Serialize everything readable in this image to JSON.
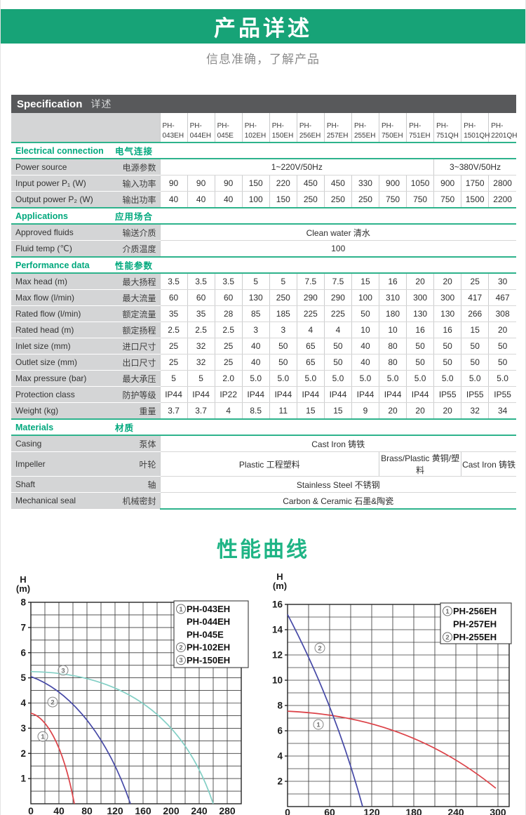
{
  "header": {
    "title": "产品详述",
    "subtitle": "信息准确，了解产品"
  },
  "spec": {
    "title_en": "Specification",
    "title_zh": "详述",
    "models": [
      "PH-043EH",
      "PH-044EH",
      "PH-045E",
      "PH-102EH",
      "PH-150EH",
      "PH-256EH",
      "PH-257EH",
      "PH-255EH",
      "PH-750EH",
      "PH-751EH",
      "PH-751QH",
      "PH-1501QH",
      "PH-2201QH"
    ],
    "rows": [
      {
        "type": "section",
        "en": "Electrical connection",
        "zh": "电气连接"
      },
      {
        "type": "row",
        "en": "Power source",
        "zh": "电源参数",
        "cells": [
          {
            "span": 10,
            "t": "1~220V/50Hz"
          },
          {
            "span": 3,
            "t": "3~380V/50Hz"
          }
        ]
      },
      {
        "type": "row",
        "en": "Input power P₁ (W)",
        "zh": "输入功率",
        "cells": [
          "90",
          "90",
          "90",
          "150",
          "220",
          "450",
          "450",
          "330",
          "900",
          "1050",
          "900",
          "1750",
          "2800"
        ]
      },
      {
        "type": "row",
        "en": "Output power P₂ (W)",
        "zh": "输出功率",
        "cells": [
          "40",
          "40",
          "40",
          "100",
          "150",
          "250",
          "250",
          "250",
          "750",
          "750",
          "750",
          "1500",
          "2200"
        ]
      },
      {
        "type": "section",
        "en": "Applications",
        "zh": "应用场合"
      },
      {
        "type": "row",
        "en": "Approved fluids",
        "zh": "输送介质",
        "cells": [
          {
            "span": 13,
            "t": "Clean water 清水"
          }
        ]
      },
      {
        "type": "row",
        "en": "Fluid temp (℃)",
        "zh": "介质温度",
        "cells": [
          {
            "span": 13,
            "t": "100"
          }
        ]
      },
      {
        "type": "section",
        "en": "Performance data",
        "zh": "性能参数"
      },
      {
        "type": "row",
        "en": "Max head (m)",
        "zh": "最大扬程",
        "cells": [
          "3.5",
          "3.5",
          "3.5",
          "5",
          "5",
          "7.5",
          "7.5",
          "15",
          "16",
          "20",
          "20",
          "25",
          "30"
        ]
      },
      {
        "type": "row",
        "en": "Max flow (l/min)",
        "zh": "最大流量",
        "cells": [
          "60",
          "60",
          "60",
          "130",
          "250",
          "290",
          "290",
          "100",
          "310",
          "300",
          "300",
          "417",
          "467"
        ]
      },
      {
        "type": "row",
        "en": "Rated flow (l/min)",
        "zh": "额定流量",
        "cells": [
          "35",
          "35",
          "28",
          "85",
          "185",
          "225",
          "225",
          "50",
          "180",
          "130",
          "130",
          "266",
          "308"
        ]
      },
      {
        "type": "row",
        "en": "Rated head (m)",
        "zh": "额定扬程",
        "cells": [
          "2.5",
          "2.5",
          "2.5",
          "3",
          "3",
          "4",
          "4",
          "10",
          "10",
          "16",
          "16",
          "15",
          "20"
        ]
      },
      {
        "type": "row",
        "en": "Inlet size (mm)",
        "zh": "进口尺寸",
        "cells": [
          "25",
          "32",
          "25",
          "40",
          "50",
          "65",
          "50",
          "40",
          "80",
          "50",
          "50",
          "50",
          "50"
        ]
      },
      {
        "type": "row",
        "en": "Outlet size (mm)",
        "zh": "出口尺寸",
        "cells": [
          "25",
          "32",
          "25",
          "40",
          "50",
          "65",
          "50",
          "40",
          "80",
          "50",
          "50",
          "50",
          "50"
        ]
      },
      {
        "type": "row",
        "en": "Max pressure (bar)",
        "zh": "最大承压",
        "cells": [
          "5",
          "5",
          "2.0",
          "5.0",
          "5.0",
          "5.0",
          "5.0",
          "5.0",
          "5.0",
          "5.0",
          "5.0",
          "5.0",
          "5.0"
        ]
      },
      {
        "type": "row",
        "en": "Protection class",
        "zh": "防护等级",
        "cells": [
          "IP44",
          "IP44",
          "IP22",
          "IP44",
          "IP44",
          "IP44",
          "IP44",
          "IP44",
          "IP44",
          "IP44",
          "IP55",
          "IP55",
          "IP55"
        ]
      },
      {
        "type": "row",
        "en": "Weight  (kg)",
        "zh": "重量",
        "cells": [
          "3.7",
          "3.7",
          "4",
          "8.5",
          "11",
          "15",
          "15",
          "9",
          "20",
          "20",
          "20",
          "32",
          "34"
        ]
      },
      {
        "type": "section",
        "en": "Materials",
        "zh": "材质"
      },
      {
        "type": "row",
        "en": "Casing",
        "zh": "泵体",
        "cells": [
          {
            "span": 13,
            "t": "Cast Iron 铸铁"
          }
        ]
      },
      {
        "type": "row",
        "en": "Impeller",
        "zh": "叶轮",
        "cells": [
          {
            "span": 8,
            "t": "Plastic 工程塑料"
          },
          {
            "span": 3,
            "t": "Brass/Plastic 黄铜/塑料"
          },
          {
            "span": 2,
            "t": "Cast Iron 铸铁"
          }
        ]
      },
      {
        "type": "row",
        "en": "Shaft",
        "zh": "轴",
        "cells": [
          {
            "span": 13,
            "t": "Stainless Steel 不锈钢"
          }
        ]
      },
      {
        "type": "row",
        "en": "Mechanical seal",
        "zh": "机械密封",
        "cells": [
          {
            "span": 13,
            "t": "Carbon & Ceramic 石墨&陶瓷"
          }
        ]
      }
    ]
  },
  "curves": {
    "heading": "性能曲线"
  },
  "colors": {
    "banner_green": "#17a377",
    "section_green": "#00a87d",
    "rule_green": "#2eb38c",
    "bar_gray": "#58595b",
    "label_gray": "#d4d5d6",
    "curve_red": "#dc4248",
    "curve_blue": "#4548a6",
    "curve_teal": "#82cfc5"
  },
  "chart_data": [
    {
      "type": "line",
      "title": "",
      "ylabel_lines": [
        "H",
        "(m)"
      ],
      "xlim": [
        0,
        300
      ],
      "ylim": [
        0,
        8
      ],
      "x_gridstep": 20,
      "y_gridstep": 0.5,
      "x_gridmax": 300,
      "x_ticks": [
        0,
        40,
        80,
        120,
        160,
        200,
        240,
        280
      ],
      "y_ticks": [
        1,
        2,
        3,
        4,
        5,
        6,
        7,
        8
      ],
      "grid": true,
      "legend_position": "top-right",
      "legend": [
        {
          "num": "1",
          "label": "PH-043EH"
        },
        {
          "num": "",
          "label": "PH-044EH"
        },
        {
          "num": "",
          "label": "PH-045E"
        },
        {
          "num": "2",
          "label": "PH-102EH"
        },
        {
          "num": "3",
          "label": "PH-150EH"
        }
      ],
      "series": [
        {
          "name": "PH-043EH / PH-044EH / PH-045E",
          "color": "#dc4248",
          "points": [
            [
              0,
              3.6
            ],
            [
              20,
              3.45
            ],
            [
              45,
              2.5
            ],
            [
              62,
              0
            ]
          ]
        },
        {
          "name": "PH-102EH",
          "color": "#4548a6",
          "points": [
            [
              0,
              5.05
            ],
            [
              50,
              4.55
            ],
            [
              105,
              3.0
            ],
            [
              142,
              0
            ]
          ]
        },
        {
          "name": "PH-150EH",
          "color": "#82cfc5",
          "points": [
            [
              0,
              5.25
            ],
            [
              100,
              5.2
            ],
            [
              210,
              4.2
            ],
            [
              260,
              0
            ]
          ]
        }
      ],
      "markers": [
        {
          "num": "1",
          "x": 17,
          "y": 2.67
        },
        {
          "num": "2",
          "x": 31,
          "y": 4.04
        },
        {
          "num": "3",
          "x": 46,
          "y": 5.3
        }
      ]
    },
    {
      "type": "line",
      "title": "",
      "ylabel_lines": [
        "H",
        "(m)"
      ],
      "xlim": [
        0,
        316
      ],
      "ylim": [
        0,
        16
      ],
      "x_gridstep": 30,
      "y_gridstep": 1,
      "x_gridmax": 300,
      "x_ticks": [
        0,
        60,
        120,
        180,
        240,
        300
      ],
      "y_ticks": [
        2,
        4,
        6,
        8,
        10,
        12,
        14,
        16
      ],
      "grid": true,
      "legend_position": "top-right",
      "legend": [
        {
          "num": "1",
          "label": "PH-256EH"
        },
        {
          "num": "",
          "label": "PH-257EH"
        },
        {
          "num": "2",
          "label": "PH-255EH"
        }
      ],
      "series": [
        {
          "name": "PH-256EH / PH-257EH",
          "color": "#dc4248",
          "points": [
            [
              0,
              7.55
            ],
            [
              100,
              7.3
            ],
            [
              200,
              5.8
            ],
            [
              297,
              1.45
            ]
          ]
        },
        {
          "name": "PH-255EH",
          "color": "#4548a6",
          "points": [
            [
              0,
              15.2
            ],
            [
              35,
              11.5
            ],
            [
              75,
              6.5
            ],
            [
              107,
              0
            ]
          ]
        }
      ],
      "markers": [
        {
          "num": "1",
          "x": 44,
          "y": 6.5
        },
        {
          "num": "2",
          "x": 46,
          "y": 12.55
        }
      ]
    }
  ]
}
